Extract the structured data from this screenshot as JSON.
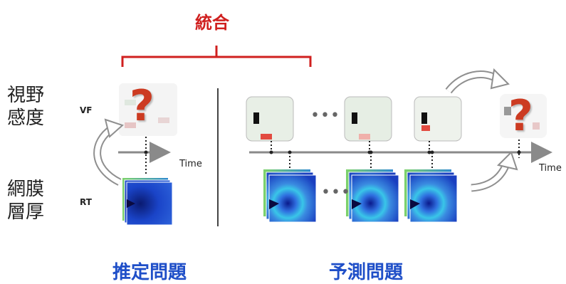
{
  "header": {
    "integration": "統合"
  },
  "left_labels": {
    "vf_line1": "視野",
    "vf_line2": "感度",
    "rt_line1": "網膜",
    "rt_line2": "層厚"
  },
  "row_labels": {
    "vf": "VF",
    "rt": "RT"
  },
  "time_labels": {
    "left": "Time",
    "right": "Time"
  },
  "ellipsis": "•••",
  "question_mark": "?",
  "bottom": {
    "estimation": "推定問題",
    "prediction": "予測問題"
  },
  "colors": {
    "accent_red": "#d0201f",
    "label_blue": "#1f4fc8",
    "question": "#cc3b22"
  }
}
